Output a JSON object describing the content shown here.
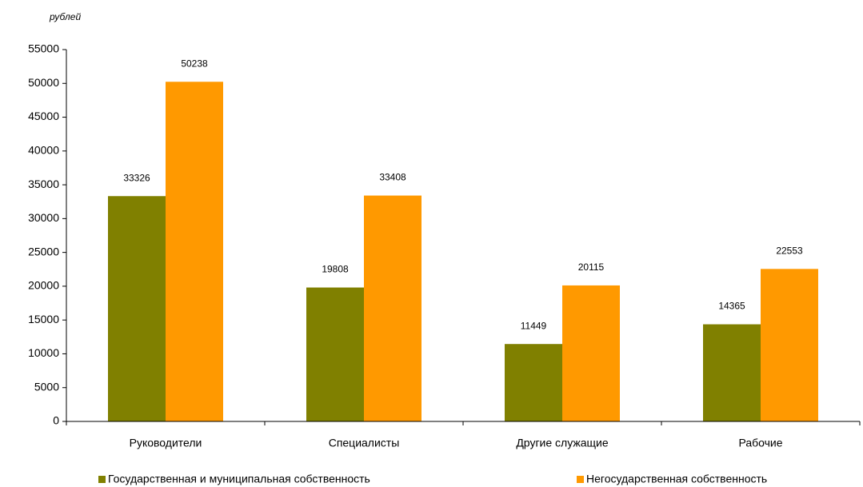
{
  "chart_data": {
    "type": "bar",
    "y_label": "рублей",
    "categories": [
      "Руководители",
      "Специалисты",
      "Другие служащие",
      "Рабочие"
    ],
    "series": [
      {
        "name": "Государственная и муниципальная собственность",
        "color": "#808000",
        "values": [
          33326,
          19808,
          11449,
          14365
        ]
      },
      {
        "name": "Негосударственная собственность",
        "color": "#ff9900",
        "values": [
          50238,
          33408,
          20115,
          22553
        ]
      }
    ],
    "ylim": [
      0,
      55000
    ],
    "yticks": [
      0,
      5000,
      10000,
      15000,
      20000,
      25000,
      30000,
      35000,
      40000,
      45000,
      50000,
      55000
    ],
    "grid": false
  }
}
